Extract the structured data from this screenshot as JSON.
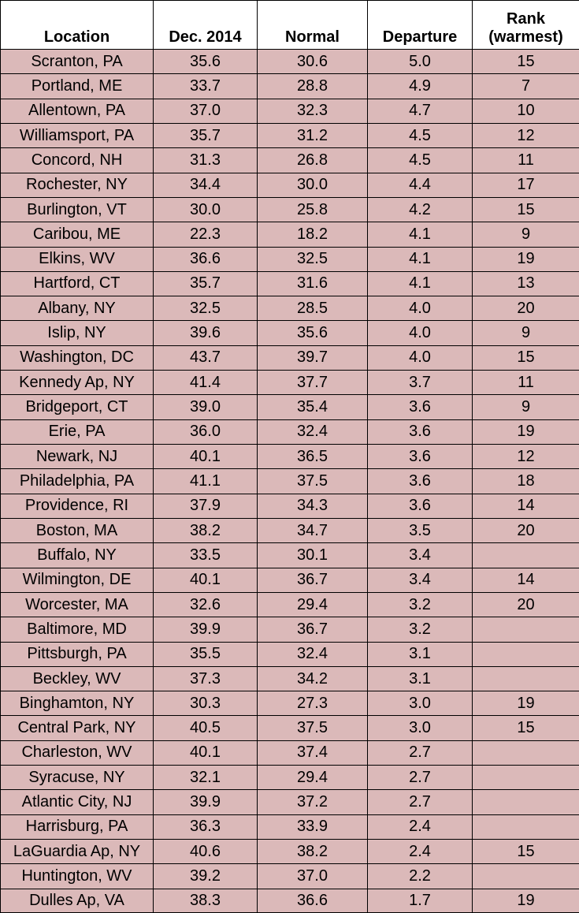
{
  "table": {
    "header": [
      "Location",
      "Dec. 2014",
      "Normal",
      "Departure",
      "Rank\n(warmest)"
    ],
    "rows": [
      [
        "Scranton, PA",
        "35.6",
        "30.6",
        "5.0",
        "15"
      ],
      [
        "Portland, ME",
        "33.7",
        "28.8",
        "4.9",
        "7"
      ],
      [
        "Allentown, PA",
        "37.0",
        "32.3",
        "4.7",
        "10"
      ],
      [
        "Williamsport, PA",
        "35.7",
        "31.2",
        "4.5",
        "12"
      ],
      [
        "Concord, NH",
        "31.3",
        "26.8",
        "4.5",
        "11"
      ],
      [
        "Rochester, NY",
        "34.4",
        "30.0",
        "4.4",
        "17"
      ],
      [
        "Burlington, VT",
        "30.0",
        "25.8",
        "4.2",
        "15"
      ],
      [
        "Caribou, ME",
        "22.3",
        "18.2",
        "4.1",
        "9"
      ],
      [
        "Elkins, WV",
        "36.6",
        "32.5",
        "4.1",
        "19"
      ],
      [
        "Hartford, CT",
        "35.7",
        "31.6",
        "4.1",
        "13"
      ],
      [
        "Albany, NY",
        "32.5",
        "28.5",
        "4.0",
        "20"
      ],
      [
        "Islip, NY",
        "39.6",
        "35.6",
        "4.0",
        "9"
      ],
      [
        "Washington, DC",
        "43.7",
        "39.7",
        "4.0",
        "15"
      ],
      [
        "Kennedy Ap, NY",
        "41.4",
        "37.7",
        "3.7",
        "11"
      ],
      [
        "Bridgeport, CT",
        "39.0",
        "35.4",
        "3.6",
        "9"
      ],
      [
        "Erie, PA",
        "36.0",
        "32.4",
        "3.6",
        "19"
      ],
      [
        "Newark, NJ",
        "40.1",
        "36.5",
        "3.6",
        "12"
      ],
      [
        "Philadelphia, PA",
        "41.1",
        "37.5",
        "3.6",
        "18"
      ],
      [
        "Providence, RI",
        "37.9",
        "34.3",
        "3.6",
        "14"
      ],
      [
        "Boston, MA",
        "38.2",
        "34.7",
        "3.5",
        "20"
      ],
      [
        "Buffalo, NY",
        "33.5",
        "30.1",
        "3.4",
        null
      ],
      [
        "Wilmington, DE",
        "40.1",
        "36.7",
        "3.4",
        "14"
      ],
      [
        "Worcester, MA",
        "32.6",
        "29.4",
        "3.2",
        "20"
      ],
      [
        "Baltimore, MD",
        "39.9",
        "36.7",
        "3.2",
        null
      ],
      [
        "Pittsburgh, PA",
        "35.5",
        "32.4",
        "3.1",
        null
      ],
      [
        "Beckley, WV",
        "37.3",
        "34.2",
        "3.1",
        null
      ],
      [
        "Binghamton, NY",
        "30.3",
        "27.3",
        "3.0",
        "19"
      ],
      [
        "Central Park, NY",
        "40.5",
        "37.5",
        "3.0",
        "15"
      ],
      [
        "Charleston, WV",
        "40.1",
        "37.4",
        "2.7",
        null
      ],
      [
        "Syracuse, NY",
        "32.1",
        "29.4",
        "2.7",
        null
      ],
      [
        "Atlantic City, NJ",
        "39.9",
        "37.2",
        "2.7",
        null
      ],
      [
        "Harrisburg, PA",
        "36.3",
        "33.9",
        "2.4",
        null
      ],
      [
        "LaGuardia Ap, NY",
        "40.6",
        "38.2",
        "2.4",
        "15"
      ],
      [
        "Huntington, WV",
        "39.2",
        "37.0",
        "2.2",
        null
      ],
      [
        "Dulles Ap, VA",
        "38.3",
        "36.6",
        "1.7",
        "19"
      ]
    ]
  }
}
